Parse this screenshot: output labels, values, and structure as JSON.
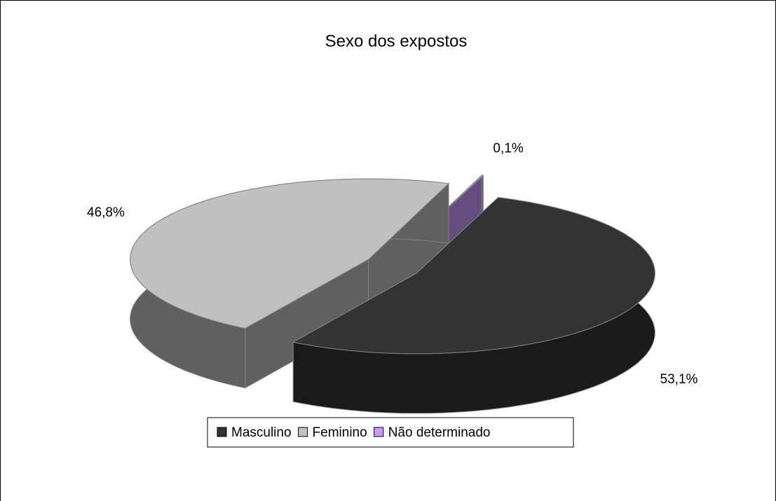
{
  "chart_data": {
    "type": "pie3d",
    "title": "Sexo dos expostos",
    "categories": [
      "Masculino",
      "Feminino",
      "Não determinado"
    ],
    "values": [
      53.1,
      46.8,
      0.1
    ],
    "value_labels": [
      "53,1%",
      "46,8%",
      "0,1%"
    ],
    "colors": [
      "#333333",
      "#c0c0c0",
      "#cc99ff"
    ],
    "legend": "bottom"
  }
}
